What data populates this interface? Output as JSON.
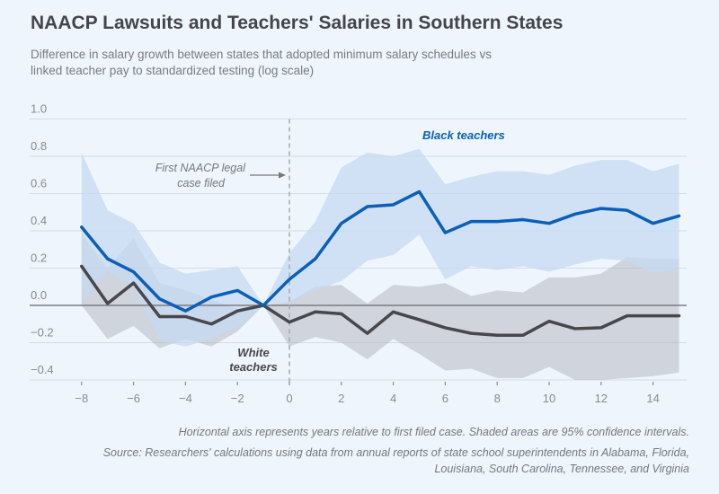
{
  "chart_data": {
    "type": "line",
    "title": "NAACP Lawsuits and Teachers' Salaries in Southern States",
    "subtitle": "Difference in salary growth between states that adopted minimum salary schedules vs linked teacher pay to standardized testing (log scale)",
    "xlabel": "",
    "ylabel": "",
    "xlim": [
      -9,
      15.5
    ],
    "ylim": [
      -0.4,
      1.0
    ],
    "x_ticks": [
      -8,
      -6,
      -4,
      -2,
      0,
      2,
      4,
      6,
      8,
      10,
      12,
      14
    ],
    "x_tick_labels": [
      "−8",
      "−6",
      "−4",
      "−2",
      "0",
      "2",
      "4",
      "6",
      "8",
      "10",
      "12",
      "14"
    ],
    "y_ticks": [
      1.0,
      0.8,
      0.6,
      0.4,
      0.2,
      0.0,
      -0.2,
      -0.4
    ],
    "y_tick_labels": [
      "1.0",
      "0.8",
      "0.6",
      "0.4",
      "0.2",
      "0.0",
      "−0.2",
      "−0.4"
    ],
    "grid": "horizontal",
    "x": [
      -8,
      -7,
      -6,
      -5,
      -4,
      -3,
      -2,
      -1,
      0,
      1,
      2,
      3,
      4,
      5,
      6,
      7,
      8,
      9,
      10,
      11,
      12,
      13,
      14,
      15
    ],
    "series": [
      {
        "name": "Black teachers",
        "color": "#0a5fb8",
        "band_color": "#c5daf2",
        "values": [
          0.42,
          0.25,
          0.18,
          0.035,
          -0.03,
          0.045,
          0.08,
          0.0,
          0.14,
          0.25,
          0.44,
          0.53,
          0.54,
          0.61,
          0.39,
          0.45,
          0.45,
          0.46,
          0.44,
          0.49,
          0.52,
          0.51,
          0.44,
          0.48
        ],
        "ci_upper": [
          0.82,
          0.51,
          0.44,
          0.23,
          0.17,
          0.19,
          0.21,
          0.0,
          0.28,
          0.45,
          0.74,
          0.82,
          0.8,
          0.84,
          0.65,
          0.69,
          0.72,
          0.72,
          0.7,
          0.75,
          0.78,
          0.78,
          0.72,
          0.76
        ],
        "ci_lower": [
          0.02,
          0.18,
          0.1,
          -0.19,
          -0.22,
          -0.18,
          -0.12,
          0.0,
          0.02,
          0.08,
          0.13,
          0.24,
          0.27,
          0.38,
          0.14,
          0.21,
          0.19,
          0.21,
          0.18,
          0.22,
          0.25,
          0.24,
          0.17,
          0.2
        ]
      },
      {
        "name": "White teachers",
        "color": "#48484c",
        "band_color": "#a9adb6",
        "values": [
          0.21,
          0.01,
          0.12,
          -0.06,
          -0.06,
          -0.1,
          -0.03,
          0.0,
          -0.09,
          -0.035,
          -0.045,
          -0.15,
          -0.035,
          -0.077,
          -0.12,
          -0.15,
          -0.16,
          -0.16,
          -0.085,
          -0.125,
          -0.12,
          -0.056,
          -0.056,
          -0.056
        ],
        "ci_upper": [
          0.38,
          0.2,
          0.36,
          0.12,
          0.08,
          0.03,
          -0.02,
          0.0,
          0.02,
          0.1,
          0.11,
          0.01,
          0.11,
          0.1,
          0.12,
          0.05,
          0.08,
          0.07,
          0.15,
          0.15,
          0.17,
          0.26,
          0.25,
          0.25
        ],
        "ci_lower": [
          0.0,
          -0.18,
          -0.11,
          -0.23,
          -0.18,
          -0.22,
          -0.14,
          0.0,
          -0.22,
          -0.17,
          -0.2,
          -0.29,
          -0.18,
          -0.26,
          -0.35,
          -0.34,
          -0.39,
          -0.39,
          -0.33,
          -0.4,
          -0.4,
          -0.39,
          -0.38,
          -0.36
        ]
      }
    ],
    "annotations": {
      "event_x": 0,
      "event_label_line1": "First NAACP legal",
      "event_label_line2": "case filed",
      "black_label": "Black teachers",
      "white_label_line1": "White",
      "white_label_line2": "teachers"
    }
  },
  "footer": {
    "note": "Horizontal axis represents years relative to first filed case. Shaded areas are 95% confidence intervals.",
    "source_line1": "Source: Researchers' calculations using data from annual reports of state school superintendents in Alabama, Florida,",
    "source_line2": "Louisiana, South Carolina, Tennessee, and Virginia"
  }
}
